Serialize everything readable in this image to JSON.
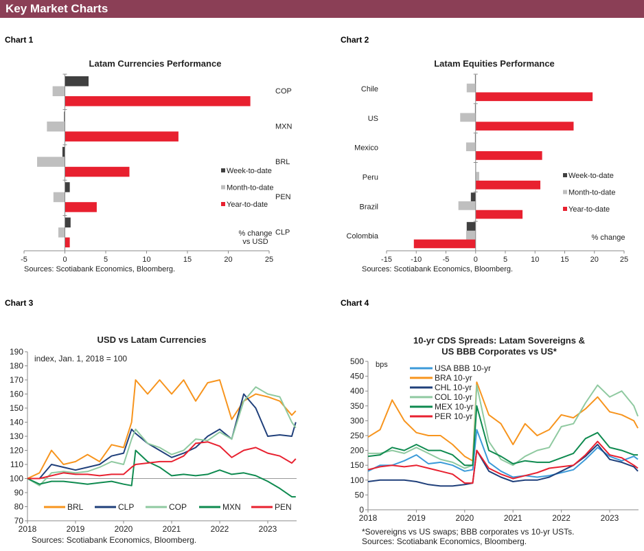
{
  "header": {
    "title": "Key Market Charts"
  },
  "chart_labels": [
    "Chart 1",
    "Chart 2",
    "Chart 3",
    "Chart 4"
  ],
  "colors": {
    "header": "#8b3f56",
    "week": "#404040",
    "month": "#bfbfbf",
    "ytd": "#e8202f"
  },
  "chart_data": [
    {
      "type": "bar",
      "orientation": "horizontal",
      "title": "Latam Currencies Performance",
      "categories": [
        "COP",
        "MXN",
        "BRL",
        "PEN",
        "CLP"
      ],
      "series": [
        {
          "name": "Week-to-date",
          "color": "#404040",
          "values": [
            2.9,
            -0.1,
            -0.3,
            0.6,
            0.7
          ]
        },
        {
          "name": "Month-to-date",
          "color": "#bfbfbf",
          "values": [
            -1.5,
            -2.2,
            -3.4,
            -1.4,
            -0.8
          ]
        },
        {
          "name": "Year-to-date",
          "color": "#e8202f",
          "values": [
            22.7,
            13.9,
            7.9,
            3.9,
            0.6
          ]
        }
      ],
      "xlim": [
        -5,
        25
      ],
      "xticks": [
        "-5",
        "0",
        "5",
        "10",
        "15",
        "20",
        "25"
      ],
      "annotation": [
        "% change",
        "vs USD"
      ],
      "legend": "right",
      "source": "Sources: Scotiabank Economics, Bloomberg."
    },
    {
      "type": "bar",
      "orientation": "horizontal",
      "title": "Latam Equities Performance",
      "categories": [
        "Chile",
        "US",
        "Mexico",
        "Peru",
        "Brazil",
        "Colombia"
      ],
      "series": [
        {
          "name": "Week-to-date",
          "color": "#404040",
          "values": [
            -0.1,
            -0.1,
            -0.1,
            0.0,
            -0.8,
            -1.5
          ]
        },
        {
          "name": "Month-to-date",
          "color": "#bfbfbf",
          "values": [
            -1.5,
            -2.6,
            -1.6,
            0.6,
            -2.9,
            -1.6
          ]
        },
        {
          "name": "Year-to-date",
          "color": "#e8202f",
          "values": [
            19.7,
            16.5,
            11.2,
            10.9,
            7.9,
            -10.4
          ]
        }
      ],
      "xlim": [
        -15,
        25
      ],
      "xticks": [
        "-15",
        "-10",
        "-5",
        "0",
        "5",
        "10",
        "15",
        "20",
        "25"
      ],
      "annotation": [
        "% change"
      ],
      "legend": "right",
      "source": "Sources: Scotiabank Economics, Bloomberg."
    },
    {
      "type": "line",
      "title": "USD vs Latam Currencies",
      "note": "index, Jan. 1, 2018 = 100",
      "x": [
        "2018-01",
        "2018-04",
        "2018-07",
        "2018-10",
        "2019-01",
        "2019-04",
        "2019-07",
        "2019-10",
        "2020-01",
        "2020-03",
        "2020-04",
        "2020-07",
        "2020-10",
        "2021-01",
        "2021-04",
        "2021-07",
        "2021-10",
        "2022-01",
        "2022-04",
        "2022-07",
        "2022-10",
        "2023-01",
        "2023-04",
        "2023-07",
        "2023-08"
      ],
      "series": [
        {
          "name": "BRL",
          "color": "#f7941d",
          "values": [
            100,
            104,
            120,
            110,
            112,
            117,
            112,
            124,
            122,
            140,
            170,
            160,
            170,
            160,
            170,
            155,
            168,
            170,
            142,
            155,
            160,
            158,
            155,
            145,
            148
          ]
        },
        {
          "name": "CLP",
          "color": "#1f3f7a",
          "values": [
            100,
            100,
            110,
            108,
            106,
            108,
            110,
            116,
            118,
            135,
            132,
            125,
            120,
            115,
            118,
            122,
            130,
            135,
            128,
            160,
            150,
            130,
            131,
            130,
            140
          ]
        },
        {
          "name": "COP",
          "color": "#8fc9a0",
          "values": [
            100,
            95,
            104,
            105,
            104,
            105,
            108,
            112,
            110,
            128,
            135,
            125,
            122,
            117,
            120,
            128,
            127,
            133,
            128,
            155,
            165,
            160,
            158,
            140,
            136
          ]
        },
        {
          "name": "MXN",
          "color": "#0e8a4f",
          "values": [
            100,
            96,
            98,
            98,
            97,
            96,
            97,
            98,
            96,
            95,
            120,
            112,
            108,
            102,
            103,
            102,
            103,
            106,
            103,
            104,
            102,
            98,
            93,
            87,
            87
          ]
        },
        {
          "name": "PEN",
          "color": "#e8202f",
          "values": [
            100,
            100,
            102,
            104,
            103,
            103,
            102,
            103,
            103,
            108,
            110,
            111,
            112,
            112,
            116,
            125,
            126,
            123,
            115,
            120,
            122,
            118,
            116,
            111,
            114
          ]
        }
      ],
      "ylim": [
        70,
        190
      ],
      "yticks": [
        "70",
        "80",
        "90",
        "100",
        "110",
        "120",
        "130",
        "140",
        "150",
        "160",
        "170",
        "180",
        "190"
      ],
      "xticks": [
        "2018",
        "2019",
        "2020",
        "2021",
        "2022",
        "2023"
      ],
      "reference_line": 100,
      "legend": "bottom",
      "source": "Sources: Scotiabank Economics, Bloomberg."
    },
    {
      "type": "line",
      "title": [
        "10-yr CDS Spreads: Latam Sovereigns &",
        "US BBB Corporates vs US*"
      ],
      "ylabel": "bps",
      "x": [
        "2018-01",
        "2018-04",
        "2018-07",
        "2018-10",
        "2019-01",
        "2019-04",
        "2019-07",
        "2019-10",
        "2020-01",
        "2020-03",
        "2020-04",
        "2020-07",
        "2020-10",
        "2021-01",
        "2021-04",
        "2021-07",
        "2021-10",
        "2022-01",
        "2022-04",
        "2022-07",
        "2022-10",
        "2023-01",
        "2023-04",
        "2023-07",
        "2023-08"
      ],
      "series": [
        {
          "name": "USA BBB 10-yr",
          "color": "#3b9ad9",
          "values": [
            130,
            150,
            150,
            165,
            185,
            155,
            160,
            150,
            130,
            135,
            270,
            160,
            130,
            110,
            115,
            110,
            115,
            125,
            135,
            170,
            210,
            180,
            165,
            180,
            170
          ]
        },
        {
          "name": "BRA 10-yr",
          "color": "#f7941d",
          "values": [
            245,
            270,
            370,
            300,
            260,
            250,
            250,
            220,
            180,
            165,
            430,
            320,
            290,
            220,
            290,
            250,
            270,
            320,
            310,
            340,
            380,
            330,
            320,
            300,
            275
          ]
        },
        {
          "name": "CHL 10-yr",
          "color": "#1f3f7a",
          "values": [
            95,
            100,
            100,
            100,
            95,
            85,
            80,
            80,
            85,
            90,
            200,
            130,
            110,
            95,
            100,
            100,
            110,
            130,
            150,
            180,
            220,
            170,
            160,
            145,
            130
          ]
        },
        {
          "name": "COL 10-yr",
          "color": "#8fc9a0",
          "values": [
            190,
            190,
            200,
            190,
            210,
            190,
            170,
            160,
            140,
            150,
            420,
            230,
            170,
            150,
            180,
            200,
            210,
            280,
            290,
            360,
            420,
            380,
            400,
            350,
            315
          ]
        },
        {
          "name": "MEX 10-yr",
          "color": "#0e8a4f",
          "values": [
            180,
            185,
            210,
            200,
            220,
            200,
            200,
            185,
            150,
            150,
            350,
            200,
            180,
            155,
            165,
            160,
            160,
            175,
            190,
            240,
            260,
            210,
            200,
            185,
            185
          ]
        },
        {
          "name": "PER 10-yr",
          "color": "#e8202f",
          "values": [
            135,
            145,
            150,
            145,
            150,
            140,
            130,
            120,
            90,
            90,
            200,
            140,
            120,
            105,
            115,
            125,
            140,
            145,
            150,
            185,
            230,
            185,
            175,
            150,
            140
          ]
        }
      ],
      "ylim": [
        0,
        500
      ],
      "yticks": [
        "0",
        "50",
        "100",
        "150",
        "200",
        "250",
        "300",
        "350",
        "400",
        "450",
        "500"
      ],
      "xticks": [
        "2018",
        "2019",
        "2020",
        "2021",
        "2022",
        "2023"
      ],
      "legend": "top-left",
      "footnote": "*Sovereigns vs US swaps; BBB corporates vs 10-yr USTs.",
      "source": "Sources: Scotiabank Economics, Bloomberg."
    }
  ]
}
